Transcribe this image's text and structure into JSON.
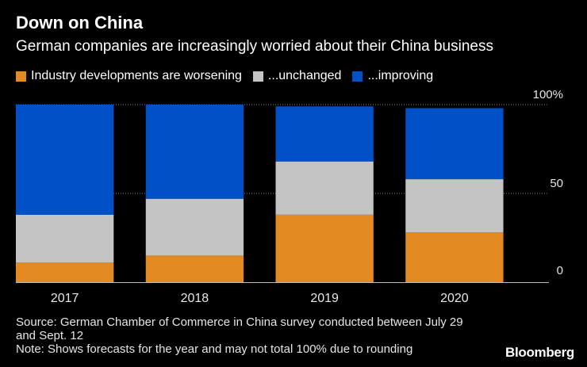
{
  "chart_data": {
    "type": "bar",
    "stacked": true,
    "title": "Down on China",
    "subtitle": "German companies are increasingly worried about their China business",
    "categories": [
      "2017",
      "2018",
      "2019",
      "2020"
    ],
    "series": [
      {
        "name": "Industry developments are worsening",
        "color": "#e38a22",
        "values": [
          11,
          15,
          38,
          28
        ]
      },
      {
        "name": "...unchanged",
        "color": "#c4c4c4",
        "values": [
          27,
          32,
          30,
          30
        ]
      },
      {
        "name": "...improving",
        "color": "#0051c8",
        "values": [
          62,
          53,
          31,
          40
        ]
      }
    ],
    "ylim": [
      0,
      100
    ],
    "yticks": [
      {
        "value": 100,
        "label": "100%"
      },
      {
        "value": 50,
        "label": "50"
      },
      {
        "value": 0,
        "label": "0"
      }
    ],
    "grid": true,
    "legend_position": "top-left"
  },
  "source": "Source: German Chamber of Commerce in China survey conducted between July 29\nand Sept. 12",
  "note": "Note: Shows forecasts for the year and may not total 100% due to rounding",
  "brand": "Bloomberg"
}
